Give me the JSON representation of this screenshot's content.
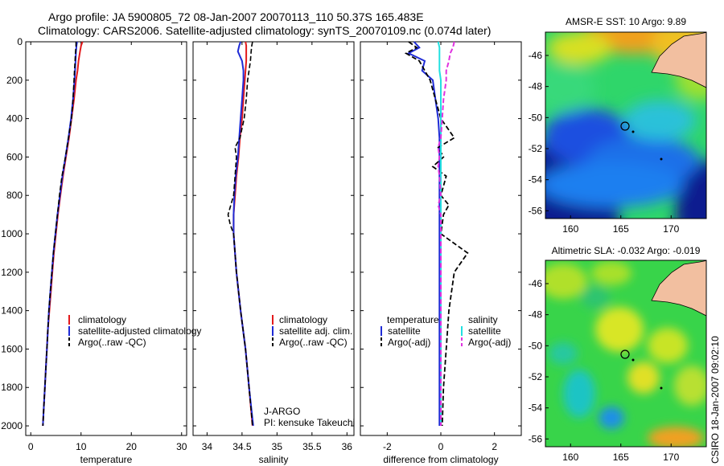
{
  "header": {
    "line1": "Argo profile: JA 5900805_72 08-Jan-2007 20070113_110 50.37S 165.483E",
    "line2": "Climatology: CARS2006. Satellite-adjusted climatology: synTS_20070109.nc (0.074d later)"
  },
  "side_credit": "CSIRO 18-Jan-2007 09:02:10",
  "colors": {
    "climatology": "#e31a1c",
    "satellite": "#1f2bd6",
    "argo": "#000000",
    "sal_satellite": "#22e0e0",
    "sal_argo": "#e033e0"
  },
  "chart_data": [
    {
      "type": "line",
      "xlabel": "temperature",
      "ylabel": "",
      "xlim": [
        -1,
        31
      ],
      "ylim": [
        2050,
        0
      ],
      "xticks": [
        "0",
        "10",
        "20",
        "30"
      ],
      "yticks": [
        "0",
        "200",
        "400",
        "600",
        "800",
        "1000",
        "1200",
        "1400",
        "1600",
        "1800",
        "2000"
      ],
      "legend": [
        "climatology",
        "satellite-adjusted climatology",
        "Argo(..raw -QC)"
      ],
      "depth": [
        0,
        20,
        50,
        100,
        150,
        200,
        300,
        400,
        500,
        600,
        700,
        800,
        900,
        1000,
        1100,
        1200,
        1300,
        1400,
        1500,
        1600,
        1700,
        1800,
        1900,
        2000
      ],
      "series": [
        {
          "name": "climatology",
          "values": [
            10.3,
            10.0,
            9.8,
            9.5,
            9.3,
            9.0,
            8.6,
            8.1,
            7.6,
            7.0,
            6.4,
            5.9,
            5.4,
            5.0,
            4.6,
            4.3,
            4.0,
            3.7,
            3.4,
            3.2,
            3.0,
            2.8,
            2.6,
            2.4
          ]
        },
        {
          "name": "satellite-adjusted climatology",
          "values": [
            9.2,
            9.1,
            9.0,
            8.9,
            8.8,
            8.7,
            8.4,
            8.0,
            7.5,
            6.9,
            6.3,
            5.8,
            5.3,
            4.9,
            4.5,
            4.2,
            3.9,
            3.6,
            3.4,
            3.2,
            3.0,
            2.8,
            2.6,
            2.4
          ]
        },
        {
          "name": "Argo(..raw -QC)",
          "values": [
            9.0,
            9.0,
            8.9,
            8.8,
            8.7,
            8.6,
            8.4,
            8.1,
            7.5,
            6.9,
            6.2,
            5.7,
            5.3,
            4.9,
            4.5,
            4.2,
            3.9,
            3.6,
            3.4,
            3.2,
            3.0,
            2.8,
            2.6,
            2.4
          ]
        }
      ]
    },
    {
      "type": "line",
      "xlabel": "salinity",
      "ylabel": "",
      "xlim": [
        33.8,
        36.1
      ],
      "ylim": [
        2050,
        0
      ],
      "xticks": [
        "34",
        "34.5",
        "35",
        "35.5",
        "36"
      ],
      "yticks": [],
      "legend": [
        "climatology",
        "satellite adj. clim.",
        "Argo(..raw -QC)"
      ],
      "annotation": [
        "J-ARGO",
        "PI: kensuke Takeuchi"
      ],
      "depth": [
        0,
        20,
        50,
        100,
        150,
        200,
        300,
        400,
        500,
        550,
        600,
        700,
        800,
        900,
        950,
        1000,
        1200,
        1400,
        1600,
        1800,
        2000
      ],
      "series": [
        {
          "name": "climatology",
          "values": [
            34.55,
            34.56,
            34.56,
            34.56,
            34.55,
            34.54,
            34.52,
            34.5,
            34.47,
            34.46,
            34.45,
            34.42,
            34.4,
            34.38,
            34.38,
            34.38,
            34.42,
            34.48,
            34.55,
            34.6,
            34.65
          ]
        },
        {
          "name": "satellite adj. clim.",
          "values": [
            34.48,
            34.46,
            34.44,
            34.5,
            34.52,
            34.52,
            34.5,
            34.48,
            34.46,
            34.45,
            34.44,
            34.41,
            34.39,
            34.38,
            34.38,
            34.38,
            34.42,
            34.48,
            34.55,
            34.6,
            34.66
          ]
        },
        {
          "name": "Argo(..raw -QC)",
          "values": [
            34.65,
            34.64,
            34.63,
            34.62,
            34.6,
            34.58,
            34.56,
            34.53,
            34.47,
            34.4,
            34.42,
            34.4,
            34.38,
            34.3,
            34.33,
            34.38,
            34.42,
            34.48,
            34.55,
            34.6,
            34.65
          ]
        }
      ]
    },
    {
      "type": "line",
      "xlabel": "difference from climatology",
      "ylabel": "",
      "xlim": [
        -3,
        3
      ],
      "ylim": [
        2050,
        0
      ],
      "xticks": [
        "-2",
        "0",
        "2"
      ],
      "yticks": [],
      "legend_headers": [
        "temperature",
        "salinity"
      ],
      "legend": [
        "satellite",
        "Argo(-adj)",
        "satellite",
        "Argo(-adj)"
      ],
      "depth": [
        0,
        30,
        60,
        100,
        150,
        200,
        300,
        400,
        500,
        550,
        600,
        650,
        700,
        800,
        850,
        900,
        1000,
        1050,
        1100,
        1200,
        1400,
        1600,
        1800,
        2000
      ],
      "series": [
        {
          "name": "temperature satellite",
          "values": [
            -1.0,
            -0.8,
            -1.2,
            -0.6,
            -0.7,
            -0.3,
            -0.2,
            -0.1,
            -0.05,
            -0.05,
            -0.05,
            -0.05,
            -0.05,
            -0.05,
            -0.05,
            -0.05,
            -0.05,
            -0.05,
            -0.05,
            -0.05,
            -0.05,
            -0.05,
            -0.05,
            -0.05
          ]
        },
        {
          "name": "temperature Argo(-adj)",
          "values": [
            -1.2,
            -0.9,
            -1.3,
            -0.8,
            -0.6,
            -0.4,
            -0.2,
            0.0,
            0.5,
            -0.1,
            0.1,
            -0.3,
            0.2,
            0.0,
            0.3,
            0.1,
            0.0,
            0.5,
            1.0,
            0.5,
            0.3,
            0.2,
            0.1,
            0.05
          ]
        },
        {
          "name": "salinity satellite",
          "values": [
            -0.1,
            -0.05,
            -0.05,
            -0.05,
            -0.05,
            0.0,
            0.0,
            0.0,
            0.0,
            0.0,
            0.0,
            0.0,
            0.0,
            0.0,
            0.0,
            0.0,
            0.0,
            0.0,
            0.0,
            0.0,
            0.0,
            0.0,
            0.0,
            0.0
          ]
        },
        {
          "name": "salinity Argo(-adj)",
          "values": [
            0.5,
            0.45,
            0.35,
            0.3,
            0.2,
            0.2,
            0.1,
            0.05,
            0.0,
            -0.1,
            -0.05,
            -0.1,
            -0.05,
            0.0,
            -0.1,
            0.0,
            0.0,
            0.0,
            0.0,
            0.0,
            0.0,
            0.0,
            0.0,
            0.0
          ]
        }
      ]
    },
    {
      "type": "heatmap",
      "title": "AMSR-E SST: 10 Argo: 9.89",
      "xticks": [
        "160",
        "165",
        "170"
      ],
      "yticks": [
        "-46",
        "-48",
        "-50",
        "-52",
        "-54",
        "-56"
      ],
      "xlim": [
        157.5,
        173.5
      ],
      "ylim": [
        -56.5,
        -44.5
      ],
      "marker": {
        "lon": 165.48,
        "lat": -50.37
      }
    },
    {
      "type": "heatmap",
      "title": "Altimetric SLA: -0.032 Argo: -0.019",
      "xticks": [
        "160",
        "165",
        "170"
      ],
      "yticks": [
        "-46",
        "-48",
        "-50",
        "-52",
        "-54",
        "-56"
      ],
      "xlim": [
        157.5,
        173.5
      ],
      "ylim": [
        -56.5,
        -44.5
      ],
      "marker": {
        "lon": 165.48,
        "lat": -50.37
      }
    }
  ]
}
